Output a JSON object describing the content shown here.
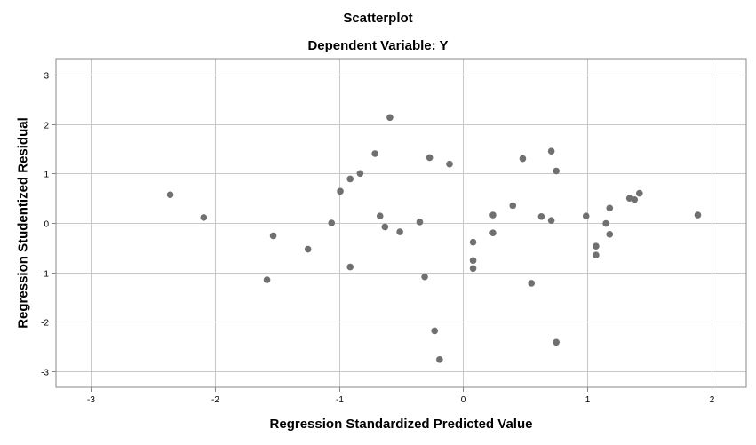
{
  "chart_data": {
    "type": "scatter",
    "title": "Scatterplot",
    "subtitle": "Dependent Variable: Y",
    "xlabel": "Regression Standardized Predicted Value",
    "ylabel": "Regression Studentized Residual",
    "xlim": [
      -3.28,
      2.28
    ],
    "ylim": [
      -3.32,
      3.32
    ],
    "xticks": [
      -3,
      -2,
      -1,
      0,
      1,
      2
    ],
    "yticks": [
      3,
      2,
      1,
      0,
      -1,
      -2,
      -3
    ],
    "xtick_labels": [
      "-3",
      "-2",
      "-1",
      "0",
      "1",
      "2"
    ],
    "ytick_labels": [
      "3",
      "2",
      "1",
      "0",
      "-1",
      "-2",
      "-3"
    ],
    "grid": true,
    "colors": {
      "point": "#707070",
      "grid": "#c8c8c8",
      "frame": "#888888"
    },
    "points": [
      {
        "x": -2.36,
        "y": 0.57
      },
      {
        "x": -2.09,
        "y": 0.11
      },
      {
        "x": -1.58,
        "y": -1.15
      },
      {
        "x": -1.53,
        "y": -0.26
      },
      {
        "x": -1.25,
        "y": -0.53
      },
      {
        "x": -1.06,
        "y": 0.0
      },
      {
        "x": -0.99,
        "y": 0.64
      },
      {
        "x": -0.91,
        "y": 0.89
      },
      {
        "x": -0.91,
        "y": -0.89
      },
      {
        "x": -0.83,
        "y": 1.0
      },
      {
        "x": -0.71,
        "y": 1.4
      },
      {
        "x": -0.67,
        "y": 0.14
      },
      {
        "x": -0.63,
        "y": -0.08
      },
      {
        "x": -0.59,
        "y": 2.13
      },
      {
        "x": -0.51,
        "y": -0.18
      },
      {
        "x": -0.35,
        "y": 0.02
      },
      {
        "x": -0.31,
        "y": -1.09
      },
      {
        "x": -0.27,
        "y": 1.32
      },
      {
        "x": -0.23,
        "y": -2.18
      },
      {
        "x": -0.19,
        "y": -2.76
      },
      {
        "x": -0.11,
        "y": 1.19
      },
      {
        "x": 0.08,
        "y": -0.39
      },
      {
        "x": 0.08,
        "y": -0.76
      },
      {
        "x": 0.08,
        "y": -0.92
      },
      {
        "x": 0.24,
        "y": 0.16
      },
      {
        "x": 0.24,
        "y": -0.2
      },
      {
        "x": 0.4,
        "y": 0.35
      },
      {
        "x": 0.48,
        "y": 1.3
      },
      {
        "x": 0.55,
        "y": -1.22
      },
      {
        "x": 0.63,
        "y": 0.13
      },
      {
        "x": 0.71,
        "y": 1.45
      },
      {
        "x": 0.71,
        "y": 0.05
      },
      {
        "x": 0.75,
        "y": 1.05
      },
      {
        "x": 0.75,
        "y": -2.41
      },
      {
        "x": 0.99,
        "y": 0.14
      },
      {
        "x": 1.07,
        "y": -0.47
      },
      {
        "x": 1.07,
        "y": -0.65
      },
      {
        "x": 1.15,
        "y": -0.01
      },
      {
        "x": 1.18,
        "y": 0.3
      },
      {
        "x": 1.18,
        "y": -0.23
      },
      {
        "x": 1.34,
        "y": 0.5
      },
      {
        "x": 1.38,
        "y": 0.47
      },
      {
        "x": 1.42,
        "y": 0.6
      },
      {
        "x": 1.89,
        "y": 0.16
      }
    ]
  }
}
